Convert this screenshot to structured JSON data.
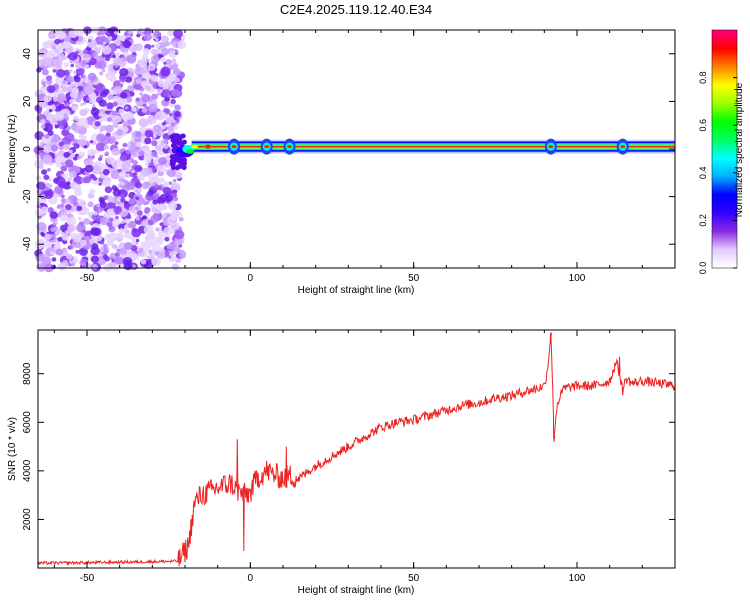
{
  "figure_title": "C2E4.2025.119.12.40.E34",
  "chart_data": [
    {
      "type": "heatmap",
      "title": "C2E4.2025.119.12.40.E34",
      "xlabel": "Height of straight line (km)",
      "ylabel": "Frequency (Hz)",
      "xlim": [
        -65,
        130
      ],
      "ylim": [
        -50,
        50
      ],
      "xticks": [
        -50,
        0,
        50,
        100
      ],
      "yticks": [
        -40,
        -20,
        0,
        20,
        40
      ],
      "colorbar": {
        "label": "Normalized spectral amplitude",
        "range": [
          0,
          1
        ],
        "ticks": [
          "0.0",
          "0.2",
          "0.4",
          "0.6",
          "0.8"
        ],
        "colormap": [
          "#ffffff",
          "#e6ccff",
          "#8a2be2",
          "#3300ff",
          "#0000ff",
          "#00b0ff",
          "#00ffff",
          "#00ff60",
          "#00ff00",
          "#a0ff00",
          "#ffff00",
          "#ff8000",
          "#ff0000",
          "#ff0080"
        ]
      },
      "noise_region_x": [
        -65,
        -21
      ],
      "onset_km": -21,
      "signal": {
        "frequency_hz": 1,
        "from_km": -21,
        "to_km": 130,
        "description_colors": [
          "#0000ff",
          "#00ffff",
          "#00ff00",
          "#ffff00",
          "#ff0000"
        ]
      }
    },
    {
      "type": "line",
      "xlabel": "Height of straight line (km)",
      "ylabel": "SNR (10 * v/v)",
      "xlim": [
        -65,
        130
      ],
      "ylim": [
        0,
        9800
      ],
      "xticks": [
        -50,
        0,
        50,
        100
      ],
      "yticks": [
        2000,
        4000,
        6000,
        8000
      ],
      "line_color": "#ee2222",
      "series": [
        {
          "x": [
            -65,
            -50,
            -35,
            -22,
            -19,
            -17,
            -15,
            -10,
            -6,
            -4,
            -2,
            0,
            2,
            5,
            8,
            10,
            12,
            15,
            17,
            20,
            25,
            30,
            35,
            40,
            45,
            50,
            55,
            60,
            65,
            70,
            75,
            80,
            85,
            88,
            90,
            91,
            92,
            93,
            94,
            96,
            100,
            105,
            108,
            110,
            112,
            113,
            114,
            115,
            117,
            120,
            125,
            130
          ],
          "y": [
            200,
            220,
            250,
            280,
            900,
            2700,
            3000,
            3300,
            3500,
            3200,
            3000,
            3100,
            3700,
            4000,
            3800,
            3700,
            3800,
            3700,
            3900,
            4200,
            4600,
            5000,
            5400,
            5800,
            6000,
            6100,
            6300,
            6500,
            6700,
            6800,
            7000,
            7100,
            7300,
            7400,
            7500,
            8200,
            9700,
            5500,
            6800,
            7400,
            7500,
            7500,
            7600,
            7700,
            8500,
            8000,
            7300,
            7800,
            7600,
            7700,
            7600,
            7500
          ]
        }
      ],
      "spikes": [
        {
          "x": -4,
          "y": 5300
        },
        {
          "x": -2,
          "y": 700
        },
        {
          "x": 11,
          "y": 5000
        },
        {
          "x": 92,
          "y": 9700
        },
        {
          "x": 93,
          "y": 5200
        },
        {
          "x": 113,
          "y": 8700
        }
      ]
    }
  ]
}
